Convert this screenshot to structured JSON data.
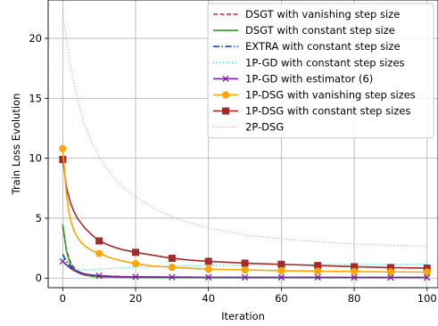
{
  "chart_data": {
    "type": "line",
    "xlabel": "Iteration",
    "ylabel": "Train Loss Evolution",
    "xlim": [
      -4,
      103
    ],
    "ylim": [
      -0.8,
      23.2
    ],
    "xticks": [
      0,
      20,
      40,
      60,
      80,
      100
    ],
    "yticks": [
      0,
      5,
      10,
      15,
      20
    ],
    "grid": true,
    "legend_position": "upper right",
    "series": [
      {
        "name": "DSGT with vanishing step size",
        "color": "#d62728",
        "linestyle": "dashed",
        "marker": "none",
        "x": [
          0,
          1,
          2,
          3,
          4,
          5,
          6,
          8,
          10,
          13,
          16,
          20,
          25,
          30,
          40,
          50,
          60,
          70,
          80,
          90,
          100
        ],
        "y": [
          4.3,
          2.4,
          1.4,
          0.9,
          0.6,
          0.45,
          0.35,
          0.25,
          0.2,
          0.15,
          0.12,
          0.1,
          0.09,
          0.08,
          0.07,
          0.06,
          0.06,
          0.05,
          0.05,
          0.05,
          0.05
        ]
      },
      {
        "name": "DSGT with constant step size",
        "color": "#2ca02c",
        "linestyle": "solid",
        "marker": "none",
        "x": [
          0,
          1,
          2,
          3,
          4,
          5,
          6,
          8,
          10,
          13,
          16,
          20,
          25,
          30,
          40,
          50,
          60,
          70,
          80,
          90,
          100
        ],
        "y": [
          4.5,
          2.3,
          1.2,
          0.75,
          0.5,
          0.35,
          0.25,
          0.15,
          0.1,
          0.08,
          0.06,
          0.05,
          0.05,
          0.04,
          0.04,
          0.04,
          0.04,
          0.04,
          0.04,
          0.04,
          0.04
        ]
      },
      {
        "name": "EXTRA with constant step size",
        "color": "#1f3fd6",
        "linestyle": "dashdot",
        "marker": "none",
        "x": [
          0,
          1,
          2,
          3,
          4,
          5,
          6,
          8,
          10,
          13,
          16,
          20,
          25,
          30,
          40,
          50,
          60,
          70,
          80,
          90,
          100
        ],
        "y": [
          2.0,
          1.4,
          1.0,
          0.75,
          0.55,
          0.45,
          0.35,
          0.25,
          0.2,
          0.15,
          0.12,
          0.1,
          0.09,
          0.08,
          0.07,
          0.06,
          0.06,
          0.06,
          0.05,
          0.05,
          0.05
        ]
      },
      {
        "name": "1P-GD with constant step sizes",
        "color": "#2ee8e8",
        "linestyle": "dotted",
        "marker": "none",
        "x": [
          0,
          1,
          2,
          3,
          4,
          5,
          6,
          7,
          8,
          10,
          13,
          16,
          20,
          25,
          30,
          40,
          50,
          60,
          70,
          80,
          90,
          100
        ],
        "y": [
          1.8,
          1.3,
          1.0,
          0.85,
          0.75,
          0.7,
          0.68,
          0.68,
          0.7,
          0.75,
          0.8,
          0.85,
          0.9,
          0.95,
          1.0,
          1.05,
          1.08,
          1.1,
          1.12,
          1.13,
          1.15,
          1.17
        ]
      },
      {
        "name": "1P-GD with estimator (6)",
        "color": "#7b1fa2",
        "linestyle": "solid",
        "marker": "x",
        "marker_every": 10,
        "x": [
          0,
          1,
          2,
          3,
          4,
          5,
          6,
          8,
          10,
          13,
          16,
          20,
          25,
          30,
          40,
          50,
          60,
          70,
          80,
          90,
          100
        ],
        "y": [
          1.4,
          1.1,
          0.85,
          0.65,
          0.5,
          0.4,
          0.33,
          0.25,
          0.2,
          0.15,
          0.12,
          0.1,
          0.09,
          0.08,
          0.07,
          0.06,
          0.06,
          0.06,
          0.05,
          0.05,
          0.05
        ]
      },
      {
        "name": "1P-DSG with vanishing step sizes",
        "color": "#ffa500",
        "linestyle": "solid",
        "marker": "circle",
        "marker_every": 10,
        "x": [
          0,
          1,
          2,
          3,
          4,
          5,
          6,
          8,
          10,
          13,
          16,
          20,
          25,
          30,
          35,
          40,
          50,
          60,
          70,
          80,
          90,
          100
        ],
        "y": [
          10.8,
          7.0,
          5.0,
          4.0,
          3.4,
          3.0,
          2.7,
          2.3,
          2.05,
          1.7,
          1.45,
          1.2,
          1.0,
          0.9,
          0.82,
          0.75,
          0.68,
          0.62,
          0.58,
          0.55,
          0.52,
          0.5
        ]
      },
      {
        "name": "1P-DSG with constant step sizes",
        "color": "#a52a2a",
        "linestyle": "solid",
        "marker": "square",
        "marker_every": 10,
        "x": [
          0,
          1,
          2,
          3,
          4,
          5,
          6,
          8,
          10,
          13,
          16,
          20,
          25,
          30,
          35,
          40,
          50,
          60,
          70,
          80,
          90,
          100
        ],
        "y": [
          9.9,
          7.6,
          6.4,
          5.6,
          5.0,
          4.6,
          4.2,
          3.6,
          3.1,
          2.7,
          2.4,
          2.15,
          1.9,
          1.65,
          1.5,
          1.4,
          1.25,
          1.15,
          1.05,
          0.95,
          0.88,
          0.83
        ]
      },
      {
        "name": "2P-DSG",
        "color": "#f4a6b8",
        "linestyle": "dotted",
        "marker": "none",
        "x": [
          0,
          1,
          2,
          3,
          4,
          5,
          6,
          8,
          10,
          12,
          14,
          16,
          18,
          20,
          25,
          30,
          35,
          40,
          45,
          50,
          55,
          60,
          65,
          70,
          75,
          80,
          85,
          90,
          95,
          100
        ],
        "y": [
          22.2,
          20.0,
          18.0,
          16.4,
          15.0,
          13.8,
          12.8,
          11.3,
          10.1,
          9.2,
          8.4,
          7.7,
          7.2,
          6.8,
          5.8,
          5.1,
          4.6,
          4.2,
          3.9,
          3.6,
          3.45,
          3.3,
          3.15,
          3.05,
          2.95,
          2.85,
          2.8,
          2.75,
          2.7,
          2.65
        ]
      }
    ]
  }
}
